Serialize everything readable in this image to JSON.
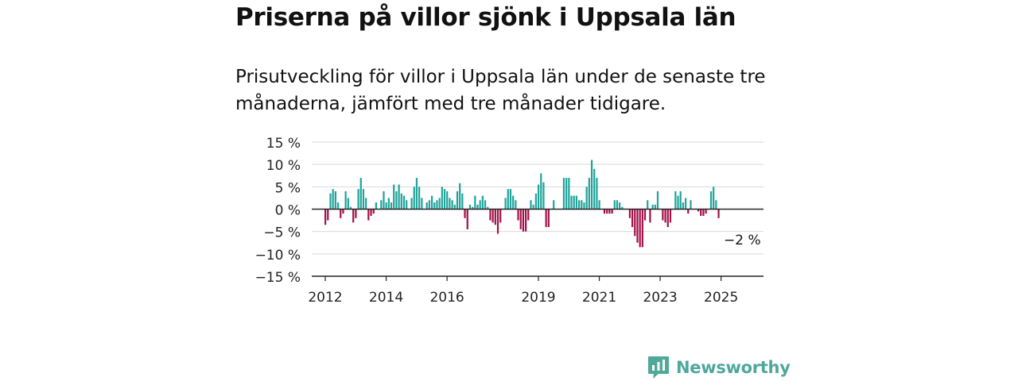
{
  "title": "Priserna på villor sjönk i Uppsala län",
  "subtitle": "Prisutveckling för villor i Uppsala län under de senaste tre månaderna, jämfört med tre månader tidigare.",
  "brand": {
    "name": "Newsworthy",
    "color": "#4fa89a",
    "icon": "newsworthy-logo-icon"
  },
  "colors": {
    "positive": "#1fa39b",
    "negative": "#a3104a",
    "grid": "#d9d9d9",
    "axis": "#222222"
  },
  "chart_data": {
    "type": "bar",
    "title": "",
    "xlabel": "",
    "ylabel": "",
    "ylim": [
      -15,
      15
    ],
    "yticks": [
      15,
      10,
      5,
      0,
      -5,
      -10,
      -15
    ],
    "ytick_labels": [
      "15 %",
      "10 %",
      "5 %",
      "0 %",
      "−5 %",
      "−10 %",
      "−15 %"
    ],
    "xticks": [
      "2012",
      "2014",
      "2016",
      "2019",
      "2021",
      "2023",
      "2025"
    ],
    "xtick_months": [
      0,
      24,
      48,
      84,
      108,
      132,
      156
    ],
    "x_start": "2011-03",
    "grid": true,
    "annotation": {
      "text": "−2 %",
      "value": -2
    },
    "values": [
      -3.5,
      -2.5,
      3.5,
      4.5,
      4.0,
      1.5,
      -2.0,
      -1.0,
      4.0,
      2.5,
      0.5,
      -3.0,
      -2.0,
      4.5,
      7.0,
      4.5,
      2.5,
      -2.5,
      -1.5,
      -1.0,
      1.5,
      0.0,
      2.0,
      4.0,
      1.5,
      2.5,
      1.5,
      5.5,
      4.0,
      5.5,
      3.5,
      3.0,
      2.0,
      0.0,
      2.5,
      5.0,
      7.0,
      5.0,
      2.5,
      0.0,
      1.5,
      2.0,
      3.0,
      1.5,
      2.0,
      2.5,
      5.0,
      4.5,
      4.0,
      2.5,
      2.0,
      1.0,
      4.0,
      5.8,
      3.5,
      -2.0,
      -4.5,
      1.0,
      0.5,
      3.0,
      1.0,
      2.0,
      3.0,
      2.0,
      0.5,
      -2.5,
      -3.0,
      -3.5,
      -5.5,
      -3.0,
      0.0,
      2.5,
      4.5,
      4.5,
      3.0,
      2.0,
      -2.5,
      -4.5,
      -5.0,
      -5.0,
      -2.5,
      2.0,
      1.0,
      3.5,
      5.5,
      8.0,
      6.0,
      -4.0,
      -4.0,
      0.0,
      2.0,
      0.0,
      0.0,
      0.0,
      7.0,
      7.0,
      7.0,
      3.0,
      3.0,
      3.0,
      2.0,
      2.0,
      1.5,
      5.0,
      7.0,
      11.0,
      9.0,
      7.0,
      2.0,
      0.0,
      -1.0,
      -1.0,
      -1.0,
      -1.0,
      2.0,
      2.0,
      1.5,
      0.5,
      0.0,
      0.0,
      -2.0,
      -4.0,
      -6.0,
      -7.5,
      -8.5,
      -8.5,
      -2.5,
      2.0,
      -3.0,
      1.0,
      1.0,
      4.0,
      0.0,
      -2.5,
      -3.0,
      -4.0,
      -3.0,
      0.0,
      4.0,
      3.0,
      4.0,
      1.5,
      2.5,
      -1.0,
      2.0,
      0.0,
      0.0,
      -0.5,
      -1.5,
      -1.5,
      -1.0,
      0.0,
      4.0,
      5.0,
      2.0,
      -2.0
    ]
  }
}
